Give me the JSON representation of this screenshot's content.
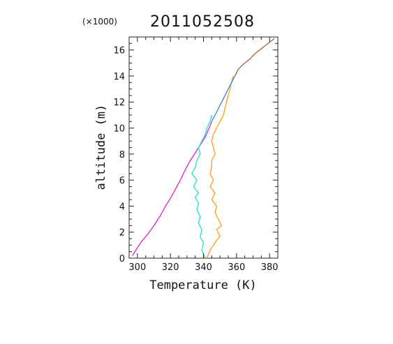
{
  "chart_data": {
    "type": "line",
    "title": "2011052508",
    "multiplier": "(×1000)",
    "xlabel": "Temperature (K)",
    "ylabel": "altitude (m)",
    "xlim": [
      295,
      385
    ],
    "ylim": [
      0,
      17
    ],
    "xticks": [
      "300",
      "320",
      "340",
      "360",
      "380"
    ],
    "yticks": [
      "0",
      "2",
      "4",
      "6",
      "8",
      "10",
      "12",
      "14",
      "16"
    ],
    "grid": false,
    "series": [
      {
        "color": "#e020c8",
        "x": [
          297,
          302,
          306,
          310,
          314,
          317,
          320,
          323,
          326,
          329,
          332,
          335,
          338,
          341,
          343,
          345
        ],
        "y": [
          0.2,
          1.2,
          1.8,
          2.5,
          3.3,
          4.0,
          4.6,
          5.3,
          6.0,
          6.8,
          7.5,
          8.1,
          8.7,
          9.3,
          9.9,
          10.5
        ]
      },
      {
        "color": "#20e0c8",
        "x": [
          341,
          339,
          340,
          338,
          339,
          337,
          338,
          336,
          337,
          335,
          337,
          334,
          336,
          333,
          335,
          336,
          338,
          337,
          339,
          341,
          342,
          344,
          345
        ],
        "y": [
          0.0,
          0.6,
          1.2,
          1.6,
          2.2,
          2.7,
          3.2,
          3.7,
          4.2,
          4.7,
          5.0,
          5.5,
          6.0,
          6.5,
          7.0,
          7.5,
          8.0,
          8.5,
          9.0,
          9.5,
          10.0,
          10.5,
          11.0
        ]
      },
      {
        "color": "#ff9c10",
        "x": [
          342,
          344,
          347,
          350,
          348,
          351,
          349,
          347,
          348,
          345,
          347,
          344,
          346,
          344,
          345,
          345,
          347,
          346,
          345,
          346,
          348,
          350,
          352,
          354,
          356,
          358
        ],
        "y": [
          0.0,
          0.6,
          1.2,
          1.7,
          2.2,
          2.5,
          3.0,
          3.5,
          4.0,
          4.5,
          5.0,
          5.5,
          6.0,
          6.5,
          7.0,
          7.5,
          8.0,
          8.5,
          9.0,
          9.5,
          10.0,
          10.5,
          11.0,
          12.0,
          13.0,
          14.0
        ]
      },
      {
        "color": "#3a82e8",
        "x": [
          345,
          347,
          349,
          351,
          353,
          355,
          357,
          359
        ],
        "y": [
          10.5,
          11.0,
          11.5,
          12.0,
          12.5,
          13.0,
          13.5,
          14.0
        ]
      },
      {
        "color": "#a06040",
        "x": [
          359,
          361,
          364,
          368,
          371,
          374,
          377,
          380,
          383
        ],
        "y": [
          14.0,
          14.5,
          14.9,
          15.3,
          15.7,
          16.0,
          16.3,
          16.6,
          16.9
        ]
      }
    ]
  }
}
